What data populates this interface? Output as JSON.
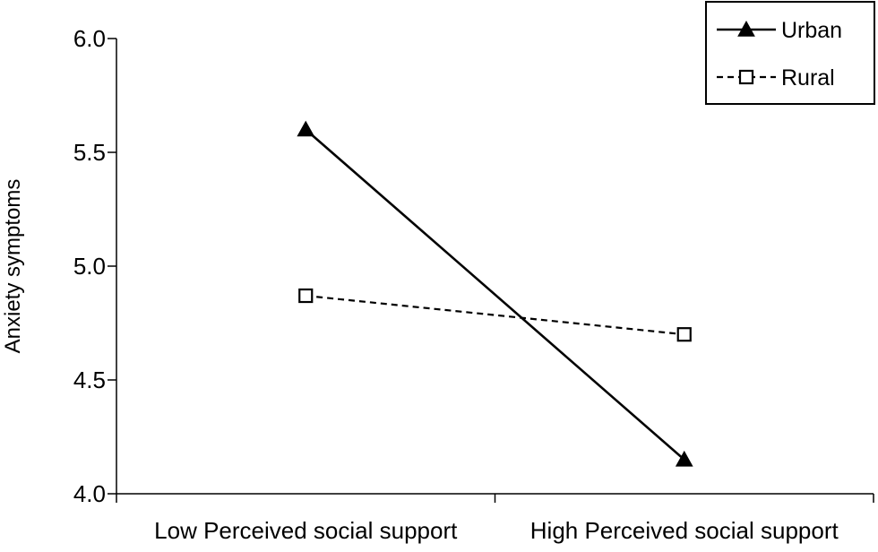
{
  "chart_data": {
    "type": "line",
    "title": "",
    "xlabel": "",
    "ylabel": "Anxiety symptoms",
    "categories": [
      "Low Perceived social support",
      "High Perceived social support"
    ],
    "ylim": [
      4.0,
      6.0
    ],
    "yticks": [
      "4.0",
      "4.5",
      "5.0",
      "5.5",
      "6.0"
    ],
    "grid": false,
    "legend_position": "top-right",
    "series": [
      {
        "name": "Urban",
        "values": [
          5.6,
          4.15
        ],
        "marker": "filled-triangle",
        "line_style": "solid",
        "color": "#000000"
      },
      {
        "name": "Rural",
        "values": [
          4.87,
          4.7
        ],
        "marker": "open-square",
        "line_style": "dashed",
        "color": "#000000"
      }
    ]
  }
}
